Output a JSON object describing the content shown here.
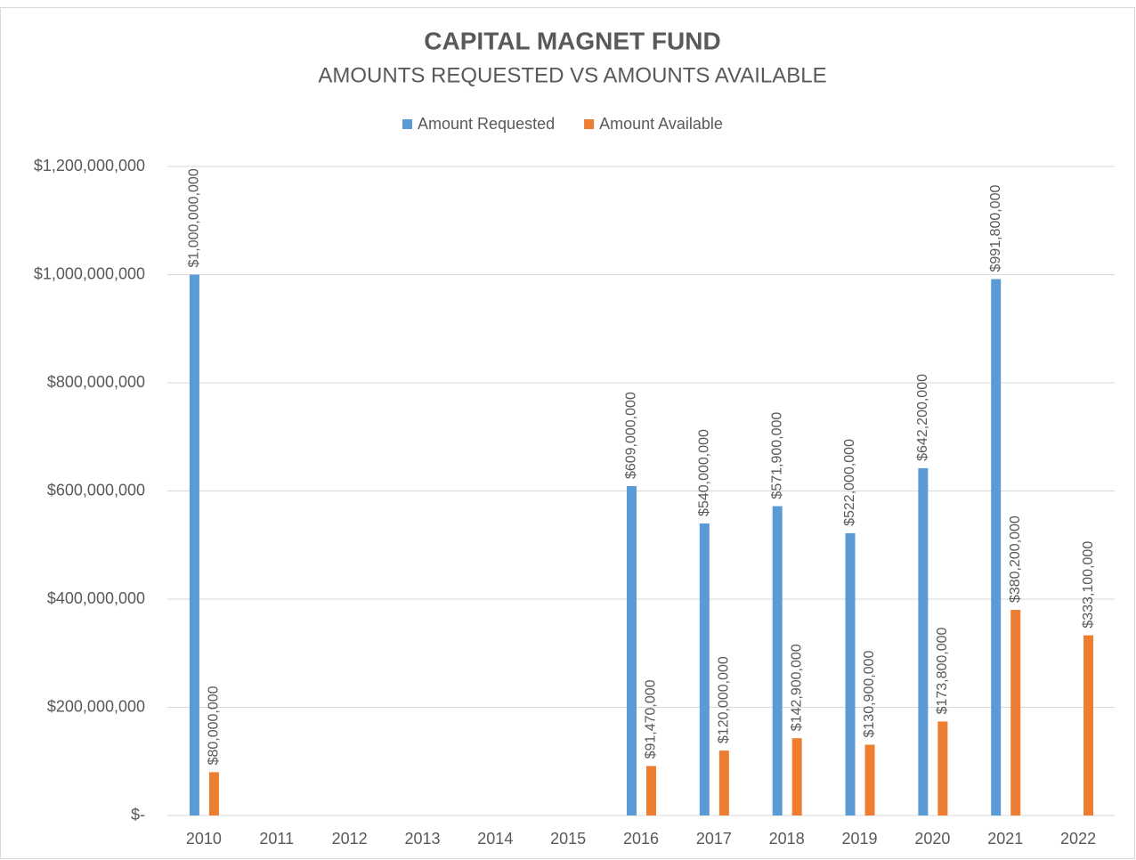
{
  "chart_data": {
    "type": "bar",
    "title": "CAPITAL MAGNET FUND",
    "subtitle": "AMOUNTS REQUESTED VS AMOUNTS AVAILABLE",
    "categories": [
      "2010",
      "2011",
      "2012",
      "2013",
      "2014",
      "2015",
      "2016",
      "2017",
      "2018",
      "2019",
      "2020",
      "2021",
      "2022"
    ],
    "series": [
      {
        "name": "Amount Requested",
        "color": "#5b9bd5",
        "values": [
          1000000000,
          null,
          null,
          null,
          null,
          null,
          609000000,
          540000000,
          571900000,
          522000000,
          642200000,
          991800000,
          null
        ],
        "value_labels": [
          "$1,000,000,000",
          null,
          null,
          null,
          null,
          null,
          "$609,000,000",
          "$540,000,000",
          "$571,900,000",
          "$522,000,000",
          "$642,200,000",
          "$991,800,000",
          null
        ]
      },
      {
        "name": "Amount Available",
        "color": "#ed7d31",
        "values": [
          80000000,
          null,
          null,
          null,
          null,
          null,
          91470000,
          120000000,
          142900000,
          130900000,
          173800000,
          380200000,
          333100000
        ],
        "value_labels": [
          "$80,000,000",
          null,
          null,
          null,
          null,
          null,
          "$91,470,000",
          "$120,000,000",
          "$142,900,000",
          "$130,900,000",
          "$173,800,000",
          "$380,200,000",
          "$333,100,000"
        ]
      }
    ],
    "ylim": [
      0,
      1200000000
    ],
    "yticks": [
      {
        "value": 0,
        "label": "$-"
      },
      {
        "value": 200000000,
        "label": "$200,000,000"
      },
      {
        "value": 400000000,
        "label": "$400,000,000"
      },
      {
        "value": 600000000,
        "label": "$600,000,000"
      },
      {
        "value": 800000000,
        "label": "$800,000,000"
      },
      {
        "value": 1000000000,
        "label": "$1,000,000,000"
      },
      {
        "value": 1200000000,
        "label": "$1,200,000,000"
      }
    ],
    "grid": true,
    "legend": "top"
  }
}
